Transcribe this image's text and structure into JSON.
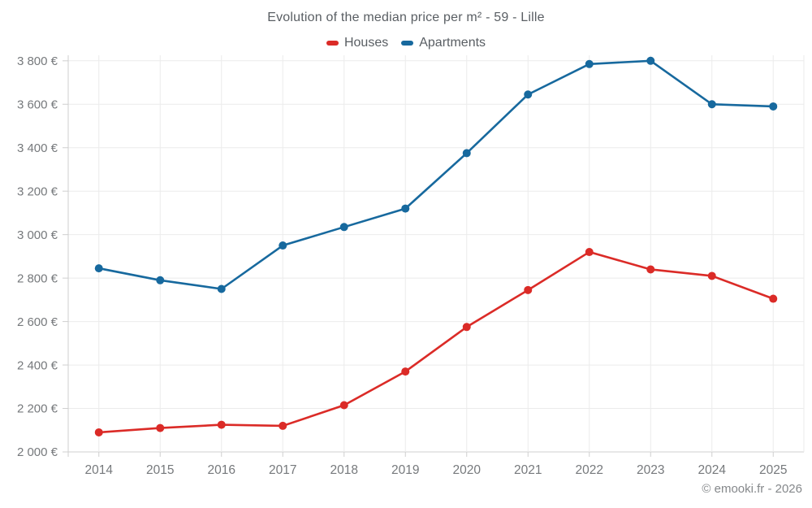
{
  "header": {
    "title": "Evolution of the median price per m² - 59 - Lille"
  },
  "legend": {
    "items": [
      {
        "label": "Houses",
        "color": "#db2b27"
      },
      {
        "label": "Apartments",
        "color": "#17699e"
      }
    ]
  },
  "footer": {
    "attribution": "© emooki.fr - 2026"
  },
  "colors": {
    "houses_line": "#db2b27",
    "apartments_line": "#17699e",
    "grid_line": "#ebebeb",
    "axis_line": "#cfcfcf",
    "tick_label": "#76797c",
    "title_text": "#595e63"
  },
  "chart_data": {
    "type": "line",
    "title": "Evolution of the median price per m² - 59 - Lille",
    "categories": [
      2014,
      2015,
      2016,
      2017,
      2018,
      2019,
      2020,
      2021,
      2022,
      2023,
      2024,
      2025
    ],
    "series": [
      {
        "name": "Houses",
        "color": "#db2b27",
        "values": [
          2090,
          2110,
          2125,
          2120,
          2215,
          2370,
          2575,
          2745,
          2920,
          2840,
          2810,
          2705
        ]
      },
      {
        "name": "Apartments",
        "color": "#17699e",
        "values": [
          2845,
          2790,
          2750,
          2950,
          3035,
          3120,
          3375,
          3645,
          3785,
          3800,
          3600,
          3590
        ]
      }
    ],
    "xlabel": "",
    "ylabel": "",
    "ylim": [
      2000,
      3800
    ],
    "ytick_step": 200,
    "ytick_suffix": " €",
    "grid": true,
    "legend_position": "top",
    "marker": "circle"
  }
}
